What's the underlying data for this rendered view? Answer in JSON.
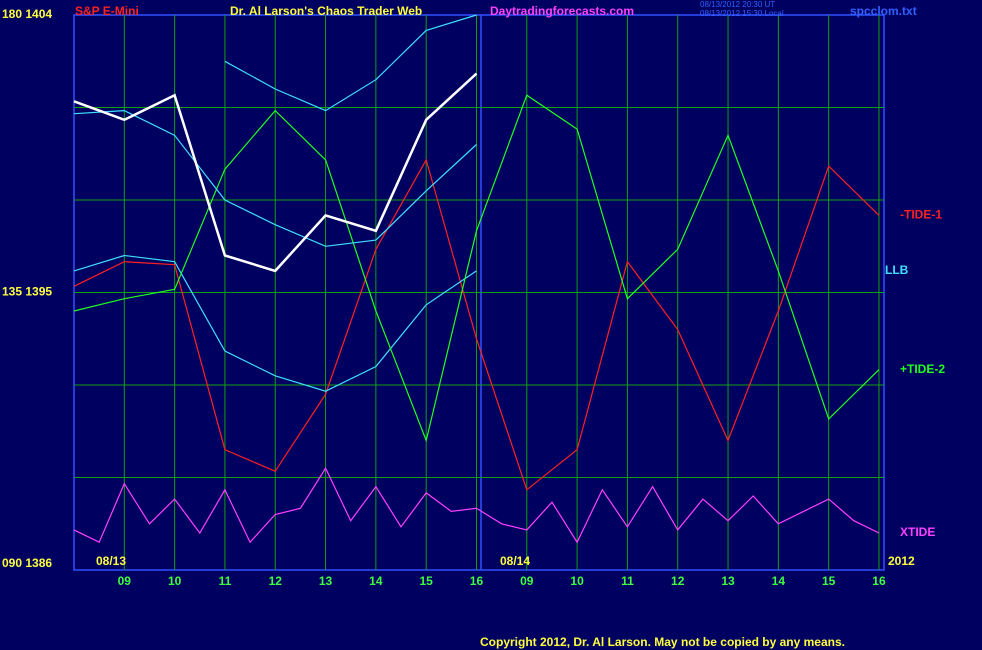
{
  "chart_data": {
    "type": "line",
    "symbol": "S&P E-Mini",
    "title": "Dr. Al Larson's Chaos Trader Web",
    "website": "Daytradingforecasts.com",
    "timestamps": [
      "08/13/2012 20:30 UT",
      "08/13/2012 15:30 Local"
    ],
    "file": "spcclom.txt",
    "copyright": "Copyright 2012, Dr. Al Larson. May not be copied by any means.",
    "date_labels": [
      "08/13",
      "08/14",
      "2012"
    ],
    "x": [
      0,
      1,
      2,
      3,
      4,
      5,
      6,
      7,
      8,
      9,
      10,
      11,
      12,
      13,
      14,
      15,
      16
    ],
    "xlim": [
      0,
      16.1
    ],
    "xticks": [
      {
        "value": 1,
        "label": "09"
      },
      {
        "value": 2,
        "label": "10"
      },
      {
        "value": 3,
        "label": "11"
      },
      {
        "value": 4,
        "label": "12"
      },
      {
        "value": 5,
        "label": "13"
      },
      {
        "value": 6,
        "label": "14"
      },
      {
        "value": 7,
        "label": "15"
      },
      {
        "value": 8,
        "label": "16"
      },
      {
        "value": 9,
        "label": "09"
      },
      {
        "value": 10,
        "label": "10"
      },
      {
        "value": 11,
        "label": "11"
      },
      {
        "value": 12,
        "label": "12"
      },
      {
        "value": 13,
        "label": "13"
      },
      {
        "value": 14,
        "label": "14"
      },
      {
        "value": 15,
        "label": "15"
      },
      {
        "value": 16,
        "label": "16"
      }
    ],
    "ylim": [
      1386,
      1404
    ],
    "yticks": [
      {
        "value": 1404,
        "label": "180 1404"
      },
      {
        "value": 1395,
        "label": "135 1395"
      },
      {
        "value": 1386,
        "label": "090 1386"
      }
    ],
    "ygrid": [
      1401,
      1398,
      1395,
      1392,
      1389
    ],
    "grid": true,
    "series": [
      {
        "name": "-TIDE-1",
        "color": "#ff2020",
        "values": [
          1395.2,
          1396.0,
          1395.9,
          1389.9,
          1389.2,
          1391.7,
          1396.4,
          1399.3,
          1393.5,
          1388.6,
          1389.9,
          1396.0,
          1393.8,
          1390.2,
          1394.4,
          1399.1,
          1397.5
        ]
      },
      {
        "name": "LLB",
        "color": "#40e0ff",
        "values": [
          1395.7,
          1396.2,
          1396.0,
          1393.1,
          1392.3,
          1391.8,
          1392.6,
          1394.6,
          1395.7,
          null,
          null,
          null,
          null,
          null,
          null,
          null,
          null
        ]
      },
      {
        "name": "+TIDE-2",
        "color": "#20ff20",
        "values": [
          1394.4,
          1394.8,
          1395.1,
          1399.0,
          1400.9,
          1399.3,
          1394.4,
          1390.2,
          1397.0,
          1401.4,
          1400.3,
          1394.8,
          1396.4,
          1400.1,
          1395.7,
          1390.9,
          1392.5
        ]
      },
      {
        "name": "XTIDE",
        "color": "#ff40ff",
        "x": [
          0,
          0.5,
          1,
          1.5,
          2,
          2.5,
          3,
          3.5,
          4,
          4.5,
          5,
          5.5,
          6,
          6.5,
          7,
          7.5,
          8,
          8.5,
          9,
          9.5,
          10,
          10.5,
          11,
          11.5,
          12,
          12.5,
          13,
          13.5,
          14,
          14.5,
          15,
          15.5,
          16
        ],
        "values": [
          1387.3,
          1386.9,
          1388.8,
          1387.5,
          1388.3,
          1387.2,
          1388.6,
          1386.9,
          1387.8,
          1388.0,
          1389.3,
          1387.6,
          1388.7,
          1387.4,
          1388.5,
          1387.9,
          1388.0,
          1387.5,
          1387.3,
          1388.2,
          1386.9,
          1388.6,
          1387.4,
          1388.7,
          1387.3,
          1388.3,
          1387.6,
          1388.4,
          1387.5,
          1387.9,
          1388.3,
          1387.6,
          1387.2
        ]
      },
      {
        "color": "#40e0ff",
        "values": [
          null,
          null,
          null,
          1402.5,
          1401.6,
          1400.9,
          1401.9,
          1403.5,
          1404.0,
          null,
          null,
          null,
          null,
          null,
          null,
          null,
          null
        ]
      },
      {
        "color": "#40e0ff",
        "values": [
          1400.8,
          1400.9,
          1400.1,
          1398.0,
          1397.2,
          1396.5,
          1396.7,
          1398.3,
          1399.8,
          null,
          null,
          null,
          null,
          null,
          null,
          null,
          null
        ]
      },
      {
        "color": "#ffffff",
        "values": [
          1401.2,
          1400.6,
          1401.4,
          1396.2,
          1395.7,
          1397.5,
          1397.0,
          1400.6,
          1402.1,
          null,
          null,
          null,
          null,
          null,
          null,
          null,
          null
        ]
      }
    ]
  }
}
